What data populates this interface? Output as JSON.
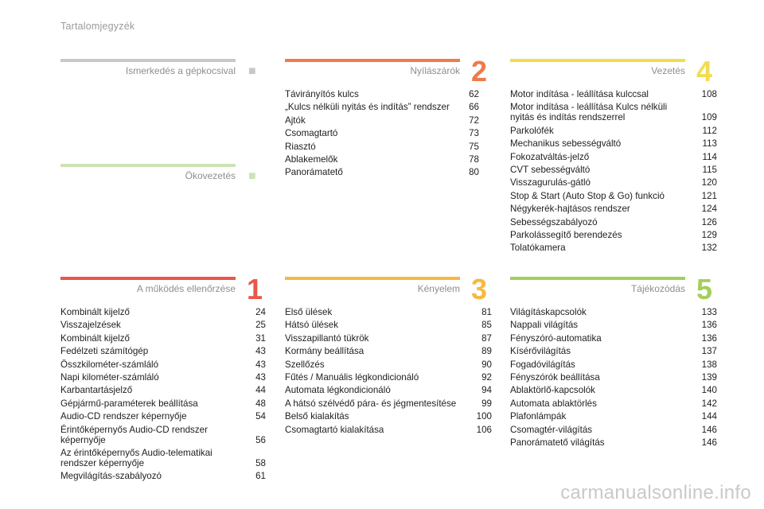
{
  "page_title": "Tartalomjegyzék",
  "watermark": "carmanualsonline.info",
  "sections": {
    "ismerkedes": {
      "title": "Ismerkedés a gépkocsival",
      "number": "",
      "color": "#c8c8c8",
      "items": []
    },
    "okovezetes": {
      "title": "Ökovezetés",
      "number": "",
      "color": "#cde3b4",
      "items": []
    },
    "nyilaszarok": {
      "title": "Nyílászárók",
      "number": "2",
      "color": "#f07a4a",
      "items": [
        {
          "label": "Távirányítós kulcs",
          "page": "62"
        },
        {
          "label": "„Kulcs nélküli nyitás és indítás” rendszer",
          "page": "66"
        },
        {
          "label": "Ajtók",
          "page": "72"
        },
        {
          "label": "Csomagtartó",
          "page": "73"
        },
        {
          "label": "Riasztó",
          "page": "75"
        },
        {
          "label": "Ablakemelők",
          "page": "78"
        },
        {
          "label": "Panorámatető",
          "page": "80"
        }
      ]
    },
    "vezetes": {
      "title": "Vezetés",
      "number": "4",
      "color": "#f3dc4e",
      "items": [
        {
          "label": "Motor indítása - leállítása kulccsal",
          "page": "108"
        },
        {
          "label": "Motor indítása - leállítása Kulcs nélküli nyitás és indítás rendszerrel",
          "page": "109"
        },
        {
          "label": "Parkolófék",
          "page": "112"
        },
        {
          "label": "Mechanikus sebességváltó",
          "page": "113"
        },
        {
          "label": "Fokozatváltás-jelző",
          "page": "114"
        },
        {
          "label": "CVT sebességváltó",
          "page": "115"
        },
        {
          "label": "Visszagurulás-gátló",
          "page": "120"
        },
        {
          "label": "Stop & Start (Auto Stop & Go) funkció",
          "page": "121"
        },
        {
          "label": "Négykerék-hajtásos rendszer",
          "page": "124"
        },
        {
          "label": "Sebességszabályozó",
          "page": "126"
        },
        {
          "label": "Parkolássegítő berendezés",
          "page": "129"
        },
        {
          "label": "Tolatókamera",
          "page": "132"
        }
      ]
    },
    "mukodes": {
      "title": "A működés ellenőrzése",
      "number": "1",
      "color": "#e8574b",
      "items": [
        {
          "label": "Kombinált kijelző",
          "page": "24"
        },
        {
          "label": "Visszajelzések",
          "page": "25"
        },
        {
          "label": "Kombinált kijelző",
          "page": "31"
        },
        {
          "label": "Fedélzeti számítógép",
          "page": "43"
        },
        {
          "label": "Összkilométer-számláló",
          "page": "43"
        },
        {
          "label": "Napi kilométer-számláló",
          "page": "43"
        },
        {
          "label": "Karbantartásjelző",
          "page": "44"
        },
        {
          "label": "Gépjármű-paraméterek beállítása",
          "page": "48"
        },
        {
          "label": "Audio-CD rendszer képernyője",
          "page": "54"
        },
        {
          "label": "Érintőképernyős Audio-CD rendszer képernyője",
          "page": "56"
        },
        {
          "label": "Az érintőképernyős Audio-telematikai rendszer képernyője",
          "page": "58"
        },
        {
          "label": "Megvilágítás-szabályozó",
          "page": "61"
        }
      ]
    },
    "kenyelem": {
      "title": "Kényelem",
      "number": "3",
      "color": "#f7b842",
      "items": [
        {
          "label": "Első ülések",
          "page": "81"
        },
        {
          "label": "Hátsó ülések",
          "page": "85"
        },
        {
          "label": "Visszapillantó tükrök",
          "page": "87"
        },
        {
          "label": "Kormány beállítása",
          "page": "89"
        },
        {
          "label": "Szellőzés",
          "page": "90"
        },
        {
          "label": "Fűtés / Manuális légkondicionáló",
          "page": "92"
        },
        {
          "label": "Automata légkondicionáló",
          "page": "94"
        },
        {
          "label": "A hátsó szélvédő pára- és jégmentesítése",
          "page": "99"
        },
        {
          "label": "Belső kialakítás",
          "page": "100"
        },
        {
          "label": "Csomagtartó kialakítása",
          "page": "106"
        }
      ]
    },
    "tajekozodas": {
      "title": "Tájékozódás",
      "number": "5",
      "color": "#a3cf5a",
      "items": [
        {
          "label": "Világításkapcsolók",
          "page": "133"
        },
        {
          "label": "Nappali világítás",
          "page": "136"
        },
        {
          "label": "Fényszóró-automatika",
          "page": "136"
        },
        {
          "label": "Kísérővilágítás",
          "page": "137"
        },
        {
          "label": "Fogadóvilágítás",
          "page": "138"
        },
        {
          "label": "Fényszórók beállítása",
          "page": "139"
        },
        {
          "label": "Ablaktörlő-kapcsolók",
          "page": "140"
        },
        {
          "label": "Automata ablaktörlés",
          "page": "142"
        },
        {
          "label": "Plafonlámpák",
          "page": "144"
        },
        {
          "label": "Csomagtér-világítás",
          "page": "146"
        },
        {
          "label": "Panorámatető világítás",
          "page": "146"
        }
      ]
    }
  }
}
